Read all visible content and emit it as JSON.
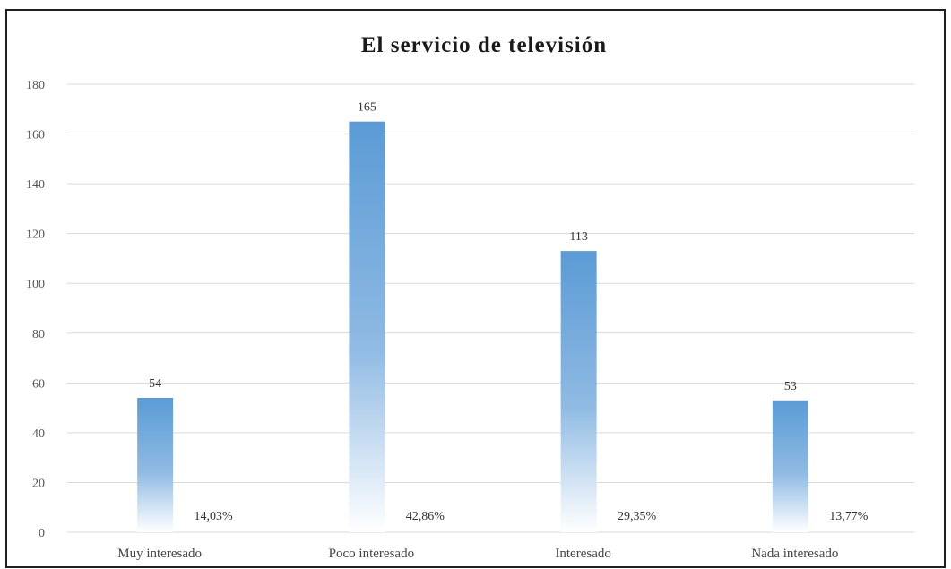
{
  "chart_data": {
    "type": "bar",
    "title": "El servicio de televisión",
    "xlabel": "",
    "ylabel": "",
    "categories": [
      "Muy interesado",
      "Poco interesado",
      "Interesado",
      "Nada interesado"
    ],
    "values": [
      54,
      165,
      113,
      53
    ],
    "value_labels": [
      "54",
      "165",
      "113",
      "53"
    ],
    "percent_values": [
      14.03,
      42.86,
      29.35,
      13.77
    ],
    "percent_labels": [
      "14,03%",
      "42,86%",
      "29,35%",
      "13,77%"
    ],
    "yticks": [
      0,
      20,
      40,
      60,
      80,
      100,
      120,
      140,
      160,
      180
    ],
    "ylim": [
      0,
      180
    ],
    "grid": true,
    "legend": "none",
    "colors": {
      "bar_top": "#5b9bd5",
      "bar_bottom": "#ffffff",
      "grid": "#d9d9d9"
    }
  }
}
